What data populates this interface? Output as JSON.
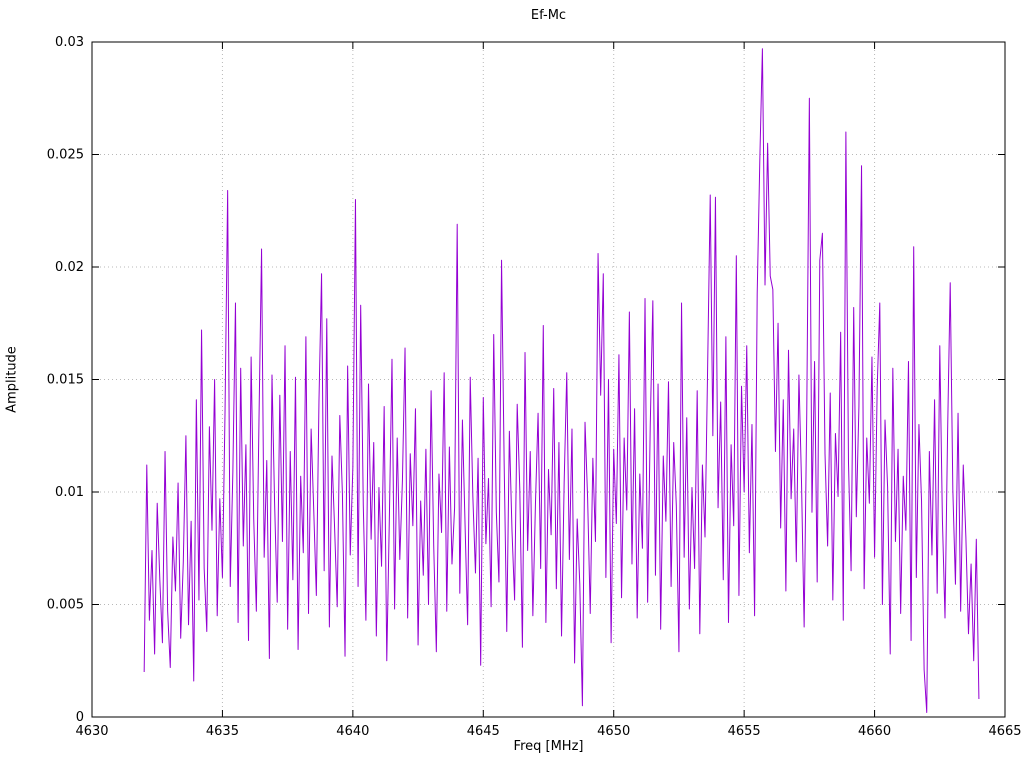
{
  "chart_data": {
    "type": "line",
    "title": "Ef-Mc",
    "xlabel": "Freq [MHz]",
    "ylabel": "Amplitude",
    "xlim": [
      4630,
      4665
    ],
    "ylim": [
      0,
      0.03
    ],
    "x_ticks": [
      4630,
      4635,
      4640,
      4645,
      4650,
      4655,
      4660,
      4665
    ],
    "x_tick_labels": [
      "4630",
      "4635",
      "4640",
      "4645",
      "4650",
      "4655",
      "4660",
      "4665"
    ],
    "y_ticks": [
      0,
      0.005,
      0.01,
      0.015,
      0.02,
      0.025,
      0.03
    ],
    "y_tick_labels": [
      "0",
      "0.005",
      "0.01",
      "0.015",
      "0.02",
      "0.025",
      "0.03"
    ],
    "grid": true,
    "legend": "none",
    "line_color": "#9400d3",
    "grid_color": "#b8b8b8",
    "axis_color": "#000000",
    "x_start": 4632.0,
    "x_step": 0.1,
    "y": [
      0.002,
      0.0112,
      0.0043,
      0.0074,
      0.0028,
      0.0095,
      0.0061,
      0.0033,
      0.0118,
      0.0047,
      0.0022,
      0.008,
      0.0056,
      0.0104,
      0.0035,
      0.0069,
      0.0125,
      0.0041,
      0.0087,
      0.0016,
      0.0141,
      0.0052,
      0.0172,
      0.0066,
      0.0038,
      0.0129,
      0.0083,
      0.015,
      0.0045,
      0.0097,
      0.0062,
      0.0136,
      0.0234,
      0.0058,
      0.0109,
      0.0184,
      0.0042,
      0.0155,
      0.0076,
      0.0121,
      0.0034,
      0.016,
      0.0088,
      0.0047,
      0.0131,
      0.0208,
      0.0071,
      0.0114,
      0.0026,
      0.0152,
      0.0095,
      0.0051,
      0.0143,
      0.0078,
      0.0165,
      0.0039,
      0.0118,
      0.0061,
      0.0151,
      0.003,
      0.0107,
      0.0073,
      0.0169,
      0.0046,
      0.0128,
      0.0092,
      0.0054,
      0.014,
      0.0197,
      0.0065,
      0.0177,
      0.004,
      0.0116,
      0.0084,
      0.0049,
      0.0134,
      0.0099,
      0.0027,
      0.0156,
      0.0072,
      0.0111,
      0.023,
      0.0058,
      0.0183,
      0.0094,
      0.0043,
      0.0148,
      0.0079,
      0.0122,
      0.0036,
      0.0102,
      0.0067,
      0.0138,
      0.0025,
      0.0089,
      0.0159,
      0.0048,
      0.0124,
      0.007,
      0.0105,
      0.0164,
      0.0044,
      0.0117,
      0.0085,
      0.0137,
      0.0032,
      0.0096,
      0.0063,
      0.0119,
      0.005,
      0.0145,
      0.0076,
      0.0029,
      0.0108,
      0.0082,
      0.0153,
      0.0047,
      0.012,
      0.0068,
      0.0093,
      0.0219,
      0.0055,
      0.0132,
      0.0086,
      0.0041,
      0.0151,
      0.0098,
      0.0064,
      0.0115,
      0.0023,
      0.0142,
      0.0077,
      0.0106,
      0.0049,
      0.017,
      0.0091,
      0.006,
      0.0203,
      0.0113,
      0.0038,
      0.0127,
      0.0083,
      0.0052,
      0.0139,
      0.0101,
      0.0031,
      0.0162,
      0.0074,
      0.0118,
      0.0045,
      0.0095,
      0.0135,
      0.0066,
      0.0174,
      0.0042,
      0.011,
      0.0081,
      0.0146,
      0.0057,
      0.0122,
      0.0036,
      0.0104,
      0.0153,
      0.007,
      0.0128,
      0.0024,
      0.0088,
      0.0059,
      0.0005,
      0.0131,
      0.0097,
      0.0046,
      0.0115,
      0.0078,
      0.0206,
      0.0143,
      0.0197,
      0.0062,
      0.015,
      0.0033,
      0.0119,
      0.0086,
      0.0161,
      0.0053,
      0.0124,
      0.0092,
      0.018,
      0.0068,
      0.0137,
      0.0044,
      0.0108,
      0.0075,
      0.0186,
      0.0051,
      0.0129,
      0.0185,
      0.0063,
      0.0148,
      0.0039,
      0.0116,
      0.0087,
      0.0149,
      0.0058,
      0.0122,
      0.0094,
      0.0029,
      0.0184,
      0.0071,
      0.0133,
      0.0048,
      0.0102,
      0.0066,
      0.0145,
      0.0037,
      0.0112,
      0.008,
      0.0155,
      0.0232,
      0.0125,
      0.0231,
      0.0093,
      0.014,
      0.0061,
      0.0169,
      0.0042,
      0.0121,
      0.0085,
      0.0205,
      0.0054,
      0.0147,
      0.01,
      0.0165,
      0.0073,
      0.013,
      0.0045,
      0.0188,
      0.0247,
      0.0297,
      0.0192,
      0.0255,
      0.0196,
      0.019,
      0.0118,
      0.0175,
      0.0084,
      0.0141,
      0.0056,
      0.0163,
      0.0097,
      0.0128,
      0.0069,
      0.0152,
      0.0104,
      0.004,
      0.0135,
      0.0275,
      0.0091,
      0.0158,
      0.006,
      0.0203,
      0.0215,
      0.0117,
      0.0076,
      0.0144,
      0.0052,
      0.0126,
      0.0098,
      0.0171,
      0.0043,
      0.026,
      0.0113,
      0.0065,
      0.0182,
      0.0089,
      0.0138,
      0.0245,
      0.0057,
      0.0124,
      0.0095,
      0.016,
      0.0071,
      0.0146,
      0.0184,
      0.005,
      0.0132,
      0.0102,
      0.0028,
      0.0155,
      0.0078,
      0.0119,
      0.0046,
      0.0107,
      0.0083,
      0.0158,
      0.0034,
      0.0209,
      0.0062,
      0.013,
      0.0096,
      0.0021,
      0.0002,
      0.0118,
      0.0072,
      0.0141,
      0.0055,
      0.0165,
      0.0088,
      0.0044,
      0.0127,
      0.0193,
      0.0101,
      0.0059,
      0.0135,
      0.0047,
      0.0112,
      0.008,
      0.0037,
      0.0068,
      0.0025,
      0.0079,
      0.0008
    ]
  }
}
